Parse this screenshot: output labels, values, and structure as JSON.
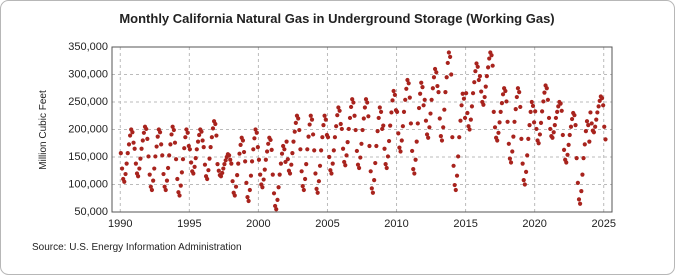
{
  "chart_data": {
    "type": "scatter",
    "title": "Monthly California Natural Gas in Underground Storage (Working Gas)",
    "y_label": "Million Cubic Feet",
    "source": "Source: U.S. Energy Information Administration",
    "color": "#a8231d",
    "grid": true,
    "xlim": [
      1989.4,
      2025.6
    ],
    "xticks": [
      1990,
      1995,
      2000,
      2005,
      2010,
      2015,
      2020,
      2025
    ],
    "ylim": [
      50000,
      350000
    ],
    "yticks": [
      {
        "value": 50000,
        "label": "50,000"
      },
      {
        "value": 100000,
        "label": "100,000"
      },
      {
        "value": 150000,
        "label": "150,000"
      },
      {
        "value": 200000,
        "label": "200,000"
      },
      {
        "value": 250000,
        "label": "250,000"
      },
      {
        "value": 300000,
        "label": "300,000"
      },
      {
        "value": 350000,
        "label": "350,000"
      }
    ],
    "x": [
      1990.04,
      1990.13,
      1990.21,
      1990.29,
      1990.38,
      1990.46,
      1990.54,
      1990.63,
      1990.71,
      1990.79,
      1990.88,
      1990.96,
      1991.04,
      1991.13,
      1991.21,
      1991.29,
      1991.38,
      1991.46,
      1991.54,
      1991.63,
      1991.71,
      1991.79,
      1991.88,
      1991.96,
      1992.04,
      1992.13,
      1992.21,
      1992.29,
      1992.38,
      1992.46,
      1992.54,
      1992.63,
      1992.71,
      1992.79,
      1992.88,
      1992.96,
      1993.04,
      1993.13,
      1993.21,
      1993.29,
      1993.38,
      1993.46,
      1993.54,
      1993.63,
      1993.71,
      1993.79,
      1993.88,
      1993.96,
      1994.04,
      1994.13,
      1994.21,
      1994.29,
      1994.38,
      1994.46,
      1994.54,
      1994.63,
      1994.71,
      1994.79,
      1994.88,
      1994.96,
      1995.04,
      1995.13,
      1995.21,
      1995.29,
      1995.38,
      1995.46,
      1995.54,
      1995.63,
      1995.71,
      1995.79,
      1995.88,
      1995.96,
      1996.04,
      1996.13,
      1996.21,
      1996.29,
      1996.38,
      1996.46,
      1996.54,
      1996.63,
      1996.71,
      1996.79,
      1996.88,
      1996.96,
      1997.04,
      1997.13,
      1997.21,
      1997.29,
      1997.38,
      1997.46,
      1997.54,
      1997.63,
      1997.71,
      1997.79,
      1997.88,
      1997.96,
      1998.04,
      1998.13,
      1998.21,
      1998.29,
      1998.38,
      1998.46,
      1998.54,
      1998.63,
      1998.71,
      1998.79,
      1998.88,
      1998.96,
      1999.04,
      1999.13,
      1999.21,
      1999.29,
      1999.38,
      1999.46,
      1999.54,
      1999.63,
      1999.71,
      1999.79,
      1999.88,
      1999.96,
      2000.04,
      2000.13,
      2000.21,
      2000.29,
      2000.38,
      2000.46,
      2000.54,
      2000.63,
      2000.71,
      2000.79,
      2000.88,
      2000.96,
      2001.04,
      2001.13,
      2001.21,
      2001.29,
      2001.38,
      2001.46,
      2001.54,
      2001.63,
      2001.71,
      2001.79,
      2001.88,
      2001.96,
      2002.04,
      2002.13,
      2002.21,
      2002.29,
      2002.38,
      2002.46,
      2002.54,
      2002.63,
      2002.71,
      2002.79,
      2002.88,
      2002.96,
      2003.04,
      2003.13,
      2003.21,
      2003.29,
      2003.38,
      2003.46,
      2003.54,
      2003.63,
      2003.71,
      2003.79,
      2003.88,
      2003.96,
      2004.04,
      2004.13,
      2004.21,
      2004.29,
      2004.38,
      2004.46,
      2004.54,
      2004.63,
      2004.71,
      2004.79,
      2004.88,
      2004.96,
      2005.04,
      2005.13,
      2005.21,
      2005.29,
      2005.38,
      2005.46,
      2005.54,
      2005.63,
      2005.71,
      2005.79,
      2005.88,
      2005.96,
      2006.04,
      2006.13,
      2006.21,
      2006.29,
      2006.38,
      2006.46,
      2006.54,
      2006.63,
      2006.71,
      2006.79,
      2006.88,
      2006.96,
      2007.04,
      2007.13,
      2007.21,
      2007.29,
      2007.38,
      2007.46,
      2007.54,
      2007.63,
      2007.71,
      2007.79,
      2007.88,
      2007.96,
      2008.04,
      2008.13,
      2008.21,
      2008.29,
      2008.38,
      2008.46,
      2008.54,
      2008.63,
      2008.71,
      2008.79,
      2008.88,
      2008.96,
      2009.04,
      2009.13,
      2009.21,
      2009.29,
      2009.38,
      2009.46,
      2009.54,
      2009.63,
      2009.71,
      2009.79,
      2009.88,
      2009.96,
      2010.04,
      2010.13,
      2010.21,
      2010.29,
      2010.38,
      2010.46,
      2010.54,
      2010.63,
      2010.71,
      2010.79,
      2010.88,
      2010.96,
      2011.04,
      2011.13,
      2011.21,
      2011.29,
      2011.38,
      2011.46,
      2011.54,
      2011.63,
      2011.71,
      2011.79,
      2011.88,
      2011.96,
      2012.04,
      2012.13,
      2012.21,
      2012.29,
      2012.38,
      2012.46,
      2012.54,
      2012.63,
      2012.71,
      2012.79,
      2012.88,
      2012.96,
      2013.04,
      2013.13,
      2013.21,
      2013.29,
      2013.38,
      2013.46,
      2013.54,
      2013.63,
      2013.71,
      2013.79,
      2013.88,
      2013.96,
      2014.04,
      2014.13,
      2014.21,
      2014.29,
      2014.38,
      2014.46,
      2014.54,
      2014.63,
      2014.71,
      2014.79,
      2014.88,
      2014.96,
      2015.04,
      2015.13,
      2015.21,
      2015.29,
      2015.38,
      2015.46,
      2015.54,
      2015.63,
      2015.71,
      2015.79,
      2015.88,
      2015.96,
      2016.04,
      2016.13,
      2016.21,
      2016.29,
      2016.38,
      2016.46,
      2016.54,
      2016.63,
      2016.71,
      2016.79,
      2016.88,
      2016.96,
      2017.04,
      2017.13,
      2017.21,
      2017.29,
      2017.38,
      2017.46,
      2017.54,
      2017.63,
      2017.71,
      2017.79,
      2017.88,
      2017.96,
      2018.04,
      2018.13,
      2018.21,
      2018.29,
      2018.38,
      2018.46,
      2018.54,
      2018.63,
      2018.71,
      2018.79,
      2018.88,
      2018.96,
      2019.04,
      2019.13,
      2019.21,
      2019.29,
      2019.38,
      2019.46,
      2019.54,
      2019.63,
      2019.71,
      2019.79,
      2019.88,
      2019.96,
      2020.04,
      2020.13,
      2020.21,
      2020.29,
      2020.38,
      2020.46,
      2020.54,
      2020.63,
      2020.71,
      2020.79,
      2020.88,
      2020.96,
      2021.04,
      2021.13,
      2021.21,
      2021.29,
      2021.38,
      2021.46,
      2021.54,
      2021.63,
      2021.71,
      2021.79,
      2021.88,
      2021.96,
      2022.04,
      2022.13,
      2022.21,
      2022.29,
      2022.38,
      2022.46,
      2022.54,
      2022.63,
      2022.71,
      2022.79,
      2022.88,
      2022.96,
      2023.04,
      2023.13,
      2023.21,
      2023.29,
      2023.38,
      2023.46,
      2023.54,
      2023.63,
      2023.71,
      2023.79,
      2023.88,
      2023.96,
      2024.04,
      2024.13,
      2024.21,
      2024.29,
      2024.38,
      2024.46,
      2024.54,
      2024.63,
      2024.71,
      2024.79,
      2024.88,
      2024.96,
      2025.04,
      2025.13
    ],
    "values": [
      157000,
      129000,
      110000,
      105000,
      119000,
      138000,
      157000,
      173000,
      189000,
      200000,
      195000,
      176000,
      165000,
      138000,
      120000,
      115000,
      129000,
      147000,
      165000,
      180000,
      194000,
      205000,
      201000,
      183000,
      151000,
      118000,
      96000,
      90000,
      107000,
      129000,
      151000,
      169000,
      187000,
      200000,
      195000,
      173000,
      153000,
      119000,
      96000,
      90000,
      107000,
      130000,
      153000,
      173000,
      191000,
      205000,
      199000,
      176000,
      146000,
      110000,
      86000,
      80000,
      98000,
      122000,
      146000,
      166000,
      186000,
      200000,
      194000,
      170000,
      164000,
      140000,
      124000,
      120000,
      132000,
      148000,
      164000,
      178000,
      190000,
      200000,
      196000,
      180000,
      168000,
      136000,
      115000,
      110000,
      126000,
      147000,
      168000,
      186000,
      202000,
      215000,
      210000,
      189000,
      137000,
      125000,
      117000,
      115000,
      121000,
      129000,
      137000,
      144000,
      150000,
      155000,
      153000,
      145000,
      138000,
      106000,
      85000,
      80000,
      96000,
      117000,
      138000,
      156000,
      172000,
      185000,
      180000,
      159000,
      142000,
      103000,
      77000,
      70000,
      90000,
      116000,
      142000,
      164000,
      184000,
      200000,
      194000,
      168000,
      145000,
      118000,
      100000,
      95000,
      109000,
      127000,
      145000,
      160000,
      174000,
      185000,
      181000,
      163000,
      118000,
      84000,
      61000,
      55000,
      72000,
      95000,
      118000,
      138000,
      156000,
      170000,
      164000,
      141000,
      178000,
      146000,
      125000,
      120000,
      136000,
      157000,
      178000,
      196000,
      212000,
      225000,
      220000,
      199000,
      164000,
      124000,
      97000,
      90000,
      110000,
      137000,
      164000,
      187000,
      209000,
      225000,
      218000,
      191000,
      162000,
      120000,
      92000,
      85000,
      106000,
      134000,
      162000,
      186000,
      208000,
      225000,
      218000,
      190000,
      186000,
      150000,
      126000,
      120000,
      138000,
      162000,
      186000,
      206000,
      226000,
      240000,
      234000,
      210000,
      201000,
      165000,
      141000,
      135000,
      153000,
      177000,
      201000,
      221000,
      241000,
      255000,
      249000,
      225000,
      199000,
      161000,
      136000,
      130000,
      149000,
      174000,
      199000,
      220000,
      240000,
      255000,
      249000,
      224000,
      170000,
      124000,
      93000,
      85000,
      108000,
      139000,
      170000,
      197000,
      221000,
      240000,
      232000,
      201000,
      207000,
      165000,
      137000,
      130000,
      151000,
      179000,
      207000,
      231000,
      253000,
      270000,
      263000,
      235000,
      232000,
      193000,
      167000,
      160000,
      180000,
      206000,
      232000,
      254000,
      274000,
      290000,
      284000,
      258000,
      211000,
      161000,
      128000,
      120000,
      145000,
      178000,
      211000,
      239000,
      265000,
      285000,
      277000,
      244000,
      254000,
      216000,
      191000,
      185000,
      204000,
      229000,
      254000,
      275000,
      295000,
      310000,
      304000,
      279000,
      268000,
      220000,
      188000,
      180000,
      204000,
      236000,
      268000,
      295000,
      321000,
      340000,
      332000,
      300000,
      186000,
      134000,
      99000,
      90000,
      116000,
      151000,
      186000,
      216000,
      244000,
      265000,
      256000,
      221000,
      266000,
      230000,
      206000,
      200000,
      218000,
      242000,
      266000,
      286000,
      306000,
      320000,
      314000,
      290000,
      297000,
      269000,
      250000,
      245000,
      259000,
      278000,
      297000,
      313000,
      329000,
      340000,
      335000,
      316000,
      232000,
      204000,
      185000,
      180000,
      194000,
      213000,
      232000,
      248000,
      264000,
      275000,
      270000,
      251000,
      214000,
      174000,
      147000,
      140000,
      160000,
      187000,
      214000,
      237000,
      259000,
      275000,
      268000,
      241000,
      183000,
      138000,
      108000,
      100000,
      123000,
      153000,
      183000,
      208000,
      232000,
      250000,
      243000,
      213000,
      233000,
      201000,
      180000,
      175000,
      191000,
      212000,
      233000,
      251000,
      267000,
      280000,
      275000,
      254000,
      221000,
      201000,
      188000,
      185000,
      195000,
      208000,
      221000,
      232000,
      242000,
      250000,
      247000,
      234000,
      190000,
      163000,
      145000,
      140000,
      154000,
      172000,
      190000,
      205000,
      219000,
      230000,
      226000,
      208000,
      148000,
      103000,
      73000,
      65000,
      88000,
      118000,
      148000,
      173000,
      197000,
      215000,
      208000,
      178000,
      231000,
      211000,
      198000,
      195000,
      205000,
      218000,
      231000,
      242000,
      252000,
      260000,
      257000,
      244000,
      205000,
      182000
    ]
  }
}
